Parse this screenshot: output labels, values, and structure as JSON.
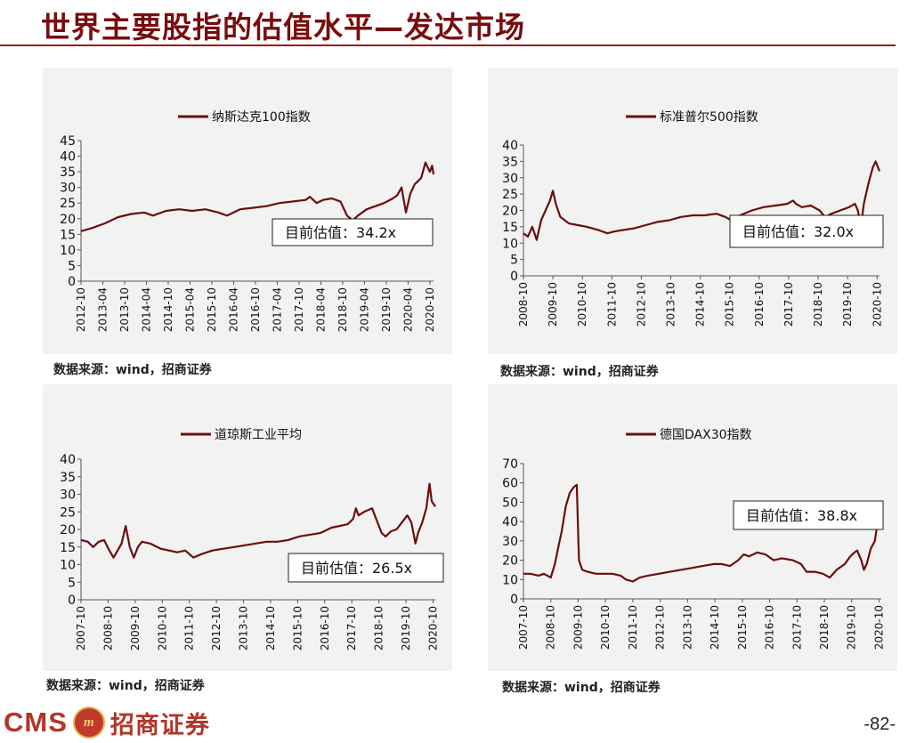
{
  "page": {
    "title": "世界主要股指的估值水平—发达市场",
    "brand_latin": "CMS",
    "brand_badge": "m",
    "brand_cn": "招商证券",
    "page_number": "-82-",
    "accent_color": "#7a0c0c",
    "line_color": "#6b0d0d"
  },
  "chart_data": [
    {
      "type": "line",
      "title": "",
      "legend": "纳斯达克100指数",
      "annotation": "目前估值：34.2x",
      "source": "数据来源：wind，招商证券",
      "ylim": [
        0,
        45
      ],
      "yticks": [
        0,
        5,
        10,
        15,
        20,
        25,
        30,
        35,
        40,
        45
      ],
      "xlim": [
        2012.75,
        2020.833
      ],
      "xticks": [
        "2012-10",
        "2013-04",
        "2013-10",
        "2014-04",
        "2014-10",
        "2015-04",
        "2015-10",
        "2016-04",
        "2016-10",
        "2017-04",
        "2017-10",
        "2018-04",
        "2018-10",
        "2019-04",
        "2019-10",
        "2020-04",
        "2020-10"
      ],
      "series": [
        {
          "x": [
            2012.75,
            2013.0,
            2013.3,
            2013.6,
            2013.9,
            2014.2,
            2014.4,
            2014.7,
            2015.0,
            2015.3,
            2015.6,
            2015.9,
            2016.1,
            2016.4,
            2016.7,
            2017.0,
            2017.3,
            2017.6,
            2017.9,
            2018.0,
            2018.15,
            2018.3,
            2018.5,
            2018.7,
            2018.85,
            2018.98,
            2019.1,
            2019.3,
            2019.5,
            2019.7,
            2019.9,
            2020.0,
            2020.1,
            2020.2,
            2020.3,
            2020.4,
            2020.55,
            2020.65,
            2020.75,
            2020.8,
            2020.833
          ],
          "y": [
            16,
            17,
            18.5,
            20.5,
            21.5,
            22,
            21,
            22.5,
            23,
            22.5,
            23,
            22,
            21,
            23,
            23.5,
            24,
            25,
            25.5,
            26,
            27,
            25,
            26,
            26.5,
            25.5,
            21,
            19.5,
            21,
            23,
            24,
            25,
            26.5,
            27.5,
            30,
            22,
            28,
            31,
            33,
            38,
            35,
            37,
            34.2
          ]
        }
      ]
    },
    {
      "type": "line",
      "title": "",
      "legend": "标准普尔500指数",
      "annotation": "目前估值：32.0x",
      "source": "数据来源：wind，招商证券",
      "ylim": [
        0,
        40
      ],
      "yticks": [
        0,
        5,
        10,
        15,
        20,
        25,
        30,
        35,
        40
      ],
      "xlim": [
        2008.75,
        2020.833
      ],
      "xticks": [
        "2008-10",
        "2009-10",
        "2010-10",
        "2011-10",
        "2012-10",
        "2013-10",
        "2014-10",
        "2015-10",
        "2016-10",
        "2017-10",
        "2018-10",
        "2019-10",
        "2020-10"
      ],
      "series": [
        {
          "x": [
            2008.75,
            2008.9,
            2009.05,
            2009.2,
            2009.35,
            2009.5,
            2009.65,
            2009.75,
            2009.85,
            2010.0,
            2010.3,
            2010.6,
            2010.9,
            2011.3,
            2011.6,
            2011.8,
            2012.1,
            2012.5,
            2012.9,
            2013.3,
            2013.7,
            2014.1,
            2014.5,
            2014.9,
            2015.3,
            2015.6,
            2015.8,
            2016.1,
            2016.5,
            2016.9,
            2017.3,
            2017.7,
            2017.9,
            2018.0,
            2018.2,
            2018.5,
            2018.8,
            2018.98,
            2019.2,
            2019.5,
            2019.8,
            2020.0,
            2020.1,
            2020.2,
            2020.3,
            2020.45,
            2020.6,
            2020.7,
            2020.833
          ],
          "y": [
            13,
            12,
            15,
            11,
            17,
            20,
            23,
            26,
            22,
            18,
            16,
            15.5,
            15,
            14,
            13,
            13.5,
            14,
            14.5,
            15.5,
            16.5,
            17,
            18,
            18.5,
            18.5,
            19,
            18,
            17,
            18.5,
            20,
            21,
            21.5,
            22,
            23,
            22,
            21,
            21.5,
            20,
            18,
            19,
            20,
            21,
            22,
            20,
            15,
            22,
            28,
            33,
            35,
            32
          ]
        }
      ]
    },
    {
      "type": "line",
      "title": "",
      "legend": "道琼斯工业平均",
      "annotation": "目前估值：26.5x",
      "source": "数据来源：wind，招商证券",
      "ylim": [
        0,
        40
      ],
      "yticks": [
        0,
        5,
        10,
        15,
        20,
        25,
        30,
        35,
        40
      ],
      "xlim": [
        2007.75,
        2020.833
      ],
      "xticks": [
        "2007-10",
        "2008-10",
        "2009-10",
        "2010-10",
        "2011-10",
        "2012-10",
        "2013-10",
        "2014-10",
        "2015-10",
        "2016-10",
        "2017-10",
        "2018-10",
        "2019-10",
        "2020-10"
      ],
      "series": [
        {
          "x": [
            2007.75,
            2008.0,
            2008.2,
            2008.4,
            2008.6,
            2008.8,
            2008.95,
            2009.1,
            2009.25,
            2009.4,
            2009.55,
            2009.7,
            2009.85,
            2010.0,
            2010.3,
            2010.7,
            2011.0,
            2011.3,
            2011.6,
            2011.9,
            2012.2,
            2012.6,
            2013.0,
            2013.4,
            2013.8,
            2014.2,
            2014.6,
            2015.0,
            2015.4,
            2015.8,
            2016.2,
            2016.6,
            2017.0,
            2017.3,
            2017.6,
            2017.8,
            2017.9,
            2018.0,
            2018.2,
            2018.5,
            2018.7,
            2018.85,
            2019.0,
            2019.2,
            2019.4,
            2019.6,
            2019.8,
            2019.95,
            2020.1,
            2020.2,
            2020.35,
            2020.5,
            2020.62,
            2020.7,
            2020.833
          ],
          "y": [
            17,
            16.5,
            15,
            16.5,
            17,
            14,
            12,
            14,
            16,
            21,
            15,
            12,
            15,
            16.5,
            16,
            14.5,
            14,
            13.5,
            14,
            12,
            13,
            14,
            14.5,
            15,
            15.5,
            16,
            16.5,
            16.5,
            17,
            18,
            18.5,
            19,
            20.5,
            21,
            21.5,
            23,
            26,
            24,
            25,
            26,
            22,
            19,
            18,
            19.5,
            20,
            22,
            24,
            22,
            16,
            19,
            22,
            26,
            33,
            28,
            26.5
          ]
        }
      ]
    },
    {
      "type": "line",
      "title": "",
      "legend": "德国DAX30指数",
      "annotation": "目前估值：38.8x",
      "source": "数据来源：wind，招商证券",
      "ylim": [
        0,
        70
      ],
      "yticks": [
        0,
        10,
        20,
        30,
        40,
        50,
        60,
        70
      ],
      "xlim": [
        2007.75,
        2020.833
      ],
      "xticks": [
        "2007-10",
        "2008-10",
        "2009-10",
        "2010-10",
        "2011-10",
        "2012-10",
        "2013-10",
        "2014-10",
        "2015-10",
        "2016-10",
        "2017-10",
        "2018-10",
        "2019-10",
        "2020-10"
      ],
      "series": [
        {
          "x": [
            2007.75,
            2008.0,
            2008.3,
            2008.5,
            2008.75,
            2008.9,
            2009.0,
            2009.15,
            2009.3,
            2009.45,
            2009.6,
            2009.7,
            2009.78,
            2009.9,
            2010.1,
            2010.4,
            2010.7,
            2011.0,
            2011.3,
            2011.5,
            2011.75,
            2012.0,
            2012.3,
            2012.7,
            2013.1,
            2013.5,
            2013.9,
            2014.3,
            2014.7,
            2015.0,
            2015.3,
            2015.6,
            2015.8,
            2016.0,
            2016.3,
            2016.6,
            2016.9,
            2017.2,
            2017.6,
            2017.9,
            2018.1,
            2018.4,
            2018.7,
            2018.95,
            2019.2,
            2019.5,
            2019.7,
            2019.85,
            2019.95,
            2020.1,
            2020.2,
            2020.3,
            2020.45,
            2020.6,
            2020.7,
            2020.833
          ],
          "y": [
            13,
            13,
            12,
            13,
            11,
            18,
            25,
            35,
            48,
            55,
            58,
            59,
            20,
            15,
            14,
            13,
            13,
            13,
            12,
            10,
            9,
            11,
            12,
            13,
            14,
            15,
            16,
            17,
            18,
            18,
            17,
            20,
            23,
            22,
            24,
            23,
            20,
            21,
            20,
            18,
            14,
            14,
            13,
            11,
            15,
            18,
            22,
            24,
            25,
            20,
            15,
            18,
            26,
            30,
            40,
            38.8
          ]
        }
      ]
    }
  ]
}
